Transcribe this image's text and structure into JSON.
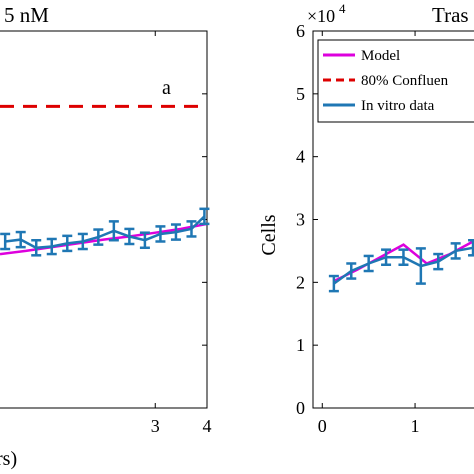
{
  "chart_data": [
    {
      "type": "line",
      "title": "5 nM",
      "xlabel": "rs)",
      "ylabel": "",
      "xlim": [
        0.0,
        4.0
      ],
      "ylim": [
        0,
        60000
      ],
      "xticks": [
        3,
        4
      ],
      "xtick_labels": [
        "3",
        "4"
      ],
      "annotation": "a",
      "series": [
        {
          "name": "",
          "color": "#dd00dd",
          "x": [
            0,
            0.5,
            1.0,
            1.5,
            2.0,
            2.5,
            3.0,
            3.5,
            4.0
          ],
          "y": [
            24500,
            25000,
            25600,
            26200,
            26800,
            27300,
            27900,
            28500,
            29300
          ]
        },
        {
          "name": "",
          "color": "#dd0000",
          "dashed": true,
          "x": [
            0,
            4.0
          ],
          "y": [
            48000,
            48000
          ]
        },
        {
          "name": "",
          "color": "#1f77b4",
          "x": [
            0.1,
            0.4,
            0.7,
            1.0,
            1.3,
            1.6,
            1.9,
            2.2,
            2.5,
            2.8,
            3.1,
            3.4,
            3.7,
            3.95
          ],
          "y": [
            26500,
            26800,
            25500,
            25700,
            26200,
            26500,
            27200,
            28200,
            27300,
            26700,
            27700,
            28000,
            28500,
            30500
          ],
          "err": [
            1200,
            1200,
            1200,
            1200,
            1200,
            1200,
            1200,
            1500,
            1200,
            1200,
            1200,
            1200,
            1200,
            1200
          ]
        }
      ]
    },
    {
      "type": "line",
      "title": "Tras",
      "xlabel": "",
      "ylabel": "Cells",
      "xlim": [
        -0.1,
        1.7
      ],
      "ylim": [
        0,
        60000
      ],
      "exponent_label": "×10",
      "exponent_power": "4",
      "yticks": [
        0,
        10000,
        20000,
        30000,
        40000,
        50000,
        60000
      ],
      "ytick_labels": [
        "0",
        "1",
        "2",
        "3",
        "4",
        "5",
        "6"
      ],
      "xticks": [
        0,
        1
      ],
      "xtick_labels": [
        "0",
        "1"
      ],
      "legend": {
        "position": "top-left",
        "entries": [
          {
            "label": "Model",
            "color": "#dd00dd",
            "dashed": false
          },
          {
            "label": "80% Confluen",
            "color": "#dd0000",
            "dashed": true
          },
          {
            "label": "In vitro data",
            "color": "#1f77b4",
            "dashed": false
          }
        ]
      },
      "series": [
        {
          "name": "Model",
          "color": "#dd00dd",
          "x": [
            0.125,
            0.375,
            0.625,
            0.875,
            1.125,
            1.375,
            1.625
          ],
          "y": [
            20200,
            22000,
            24000,
            26000,
            23000,
            24500,
            26500
          ]
        },
        {
          "name": "In vitro data",
          "color": "#1f77b4",
          "x": [
            0.125,
            0.3125,
            0.5,
            0.6875,
            0.875,
            1.0625,
            1.25,
            1.4375,
            1.625
          ],
          "y": [
            19800,
            21800,
            23000,
            24000,
            24000,
            22600,
            23300,
            25000,
            25500
          ],
          "err": [
            1200,
            1200,
            1200,
            1200,
            1200,
            2800,
            1200,
            1200,
            1200
          ]
        }
      ]
    }
  ]
}
